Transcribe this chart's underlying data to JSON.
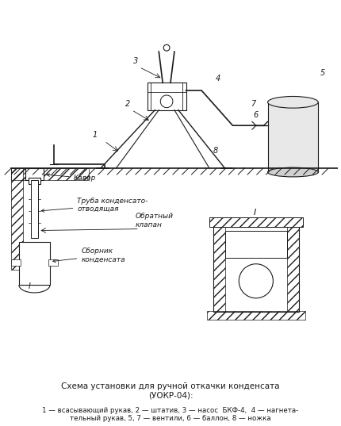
{
  "title": "Схема установки для ручной откачки конденсата\n(УОКР-04):",
  "legend": "1 — всасывающий рукав, 2 — штатив, 3 — насос  БКФ-4,  4 — нагнета-\nтельный рукав, 5, 7 — вентили, 6 — баллон, 8 — ножка",
  "background_color": "#ffffff",
  "line_color": "#1a1a1a",
  "labels": {
    "cover": "Кавер",
    "pipe": "Труба конденсато-\nотводящая",
    "valve": "Обратный\nклапан",
    "collector": "Сборник\nконденсата"
  }
}
